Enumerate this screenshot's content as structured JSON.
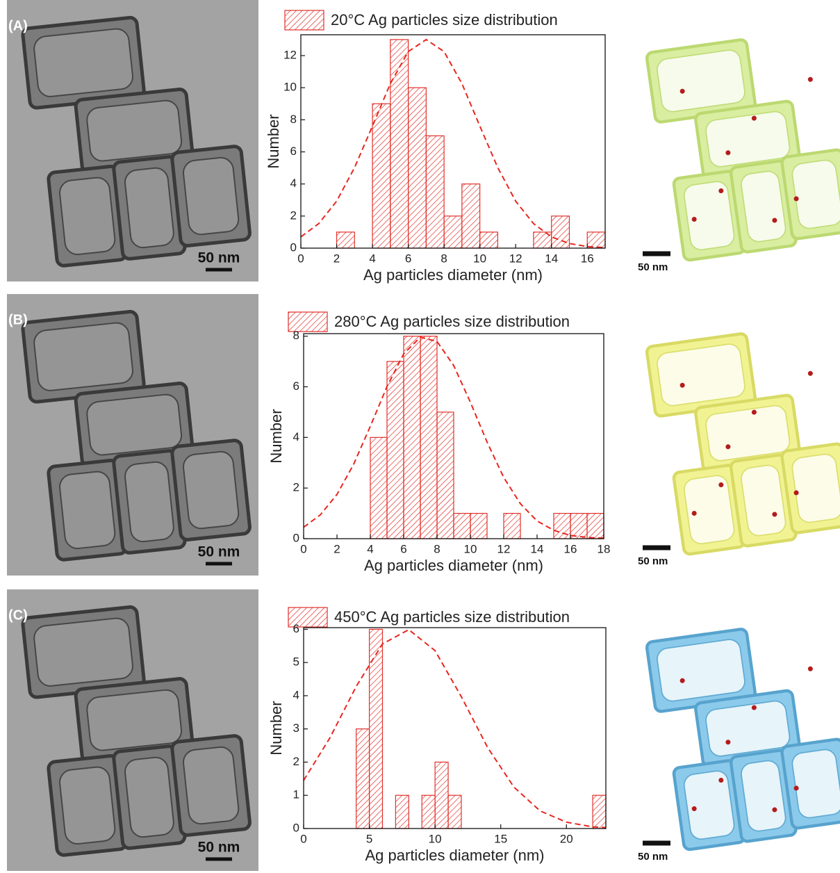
{
  "panels": [
    {
      "label": "(A)",
      "scale_bar": "50 nm",
      "render_scale_bar": "50 nm"
    },
    {
      "label": "(B)",
      "scale_bar": "50 nm",
      "render_scale_bar": "50 nm"
    },
    {
      "label": "(C)",
      "scale_bar": "50 nm",
      "render_scale_bar": "50 nm"
    }
  ],
  "chart_data": [
    {
      "type": "histogram",
      "x_label": "Ag particles diameter (nm)",
      "y_label": "Number",
      "bins": [
        2,
        3,
        4,
        5,
        6,
        7,
        8,
        9,
        10,
        11,
        12,
        13,
        14,
        15,
        16,
        17
      ],
      "series": [
        {
          "name": "20°C Ag particles size distribution",
          "color": "#e0302a",
          "values": [
            1,
            0,
            9,
            13,
            10,
            7,
            2,
            4,
            1,
            0,
            0,
            1,
            2,
            0,
            1
          ]
        }
      ],
      "fit": {
        "color": "#e8261e",
        "style": "dashed",
        "x": [
          0,
          1,
          2,
          3,
          4,
          5,
          6,
          7,
          8,
          9,
          10,
          11,
          12,
          13,
          14,
          15,
          16,
          17
        ],
        "values": [
          0.7,
          1.53,
          2.93,
          5.02,
          7.61,
          10.25,
          12.25,
          13,
          12.25,
          10.25,
          7.61,
          5.02,
          2.93,
          1.53,
          0.7,
          0.29,
          0.1,
          0.03
        ]
      },
      "xlim": [
        0,
        17
      ],
      "ylim": [
        0,
        13.3
      ],
      "xticks": [
        0,
        2,
        4,
        6,
        8,
        10,
        12,
        14,
        16
      ],
      "yticks": [
        0,
        2,
        4,
        6,
        8,
        10,
        12
      ],
      "legend": "top"
    },
    {
      "type": "histogram",
      "x_label": "Ag particles diameter (nm)",
      "y_label": "Number",
      "bins": [
        4,
        5,
        6,
        7,
        8,
        9,
        10,
        11,
        12,
        13,
        14,
        15,
        16,
        17,
        18
      ],
      "series": [
        {
          "name": "280°C Ag particles size distribution",
          "color": "#e0302a",
          "values": [
            4,
            7,
            8,
            8,
            5,
            1,
            1,
            0,
            1,
            0,
            0,
            1,
            1,
            1
          ]
        }
      ],
      "fit": {
        "color": "#e8261e",
        "style": "dashed",
        "x": [
          0,
          1,
          2,
          3,
          4,
          5,
          6,
          7,
          8,
          9,
          10,
          11,
          12,
          13,
          14,
          15,
          16,
          17,
          18
        ],
        "values": [
          0.45,
          0.94,
          1.75,
          2.94,
          4.44,
          6.01,
          7.3,
          7.96,
          7.79,
          6.84,
          5.39,
          3.82,
          2.42,
          1.38,
          0.7,
          0.33,
          0.13,
          0.05,
          0.02
        ]
      },
      "xlim": [
        0,
        18
      ],
      "ylim": [
        0,
        8.1
      ],
      "xticks": [
        0,
        2,
        4,
        6,
        8,
        10,
        12,
        14,
        16,
        18
      ],
      "yticks": [
        0,
        2,
        4,
        6,
        8
      ],
      "legend": "top"
    },
    {
      "type": "histogram",
      "x_label": "Ag particles diameter (nm)",
      "y_label": "Number",
      "bins": [
        4,
        5,
        6,
        7,
        8,
        9,
        10,
        11,
        12,
        13,
        14,
        15,
        16,
        17,
        18,
        19,
        20,
        21,
        22,
        23
      ],
      "series": [
        {
          "name": "450°C Ag particles size distribution",
          "color": "#e0302a",
          "values": [
            3,
            6,
            0,
            1,
            0,
            1,
            2,
            1,
            0,
            0,
            0,
            0,
            0,
            0,
            0,
            0,
            0,
            0,
            1
          ]
        }
      ],
      "fit": {
        "color": "#e8261e",
        "style": "dashed",
        "x": [
          0,
          2,
          4,
          6,
          8,
          10,
          12,
          14,
          16,
          18,
          20,
          22,
          23
        ],
        "values": [
          1.45,
          2.73,
          4.28,
          5.56,
          5.99,
          5.36,
          3.97,
          2.44,
          1.25,
          0.53,
          0.19,
          0.05,
          0.03
        ]
      },
      "xlim": [
        0,
        23
      ],
      "ylim": [
        0,
        6.05
      ],
      "xticks": [
        0,
        5,
        10,
        15,
        20
      ],
      "yticks": [
        0,
        1,
        2,
        3,
        4,
        5,
        6
      ],
      "legend": "top"
    }
  ]
}
